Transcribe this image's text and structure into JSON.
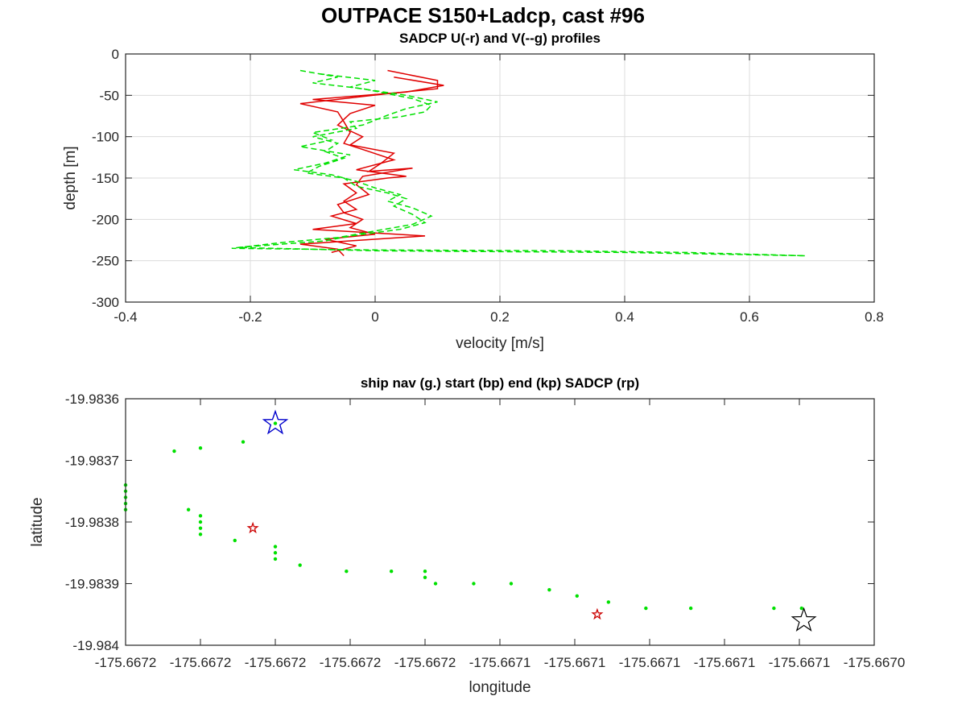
{
  "figure": {
    "title": "OUTPACE S150+Ladcp, cast #96"
  },
  "chart_data": [
    {
      "type": "line",
      "title": "SADCP U(-r) and V(--g) profiles",
      "xlabel": "velocity [m/s]",
      "ylabel": "depth [m]",
      "xlim": [
        -0.4,
        0.8
      ],
      "ylim": [
        -300,
        0
      ],
      "xticks": [
        -0.4,
        -0.2,
        0,
        0.2,
        0.4,
        0.6,
        0.8
      ],
      "xtick_labels": [
        "-0.4",
        "-0.2",
        "0",
        "0.2",
        "0.4",
        "0.6",
        "0.8"
      ],
      "yticks": [
        0,
        -50,
        -100,
        -150,
        -200,
        -250,
        -300
      ],
      "ytick_labels": [
        "0",
        "-50",
        "-100",
        "-150",
        "-200",
        "-250",
        "-300"
      ],
      "grid": true,
      "series": [
        {
          "style": "solid",
          "color": "#e00000",
          "points": [
            [
              0.02,
              -20
            ],
            [
              0.1,
              -32
            ],
            [
              0.1,
              -42
            ],
            [
              0.02,
              -48
            ],
            [
              -0.12,
              -60
            ],
            [
              -0.06,
              -70
            ],
            [
              -0.05,
              -82
            ],
            [
              -0.04,
              -95
            ],
            [
              -0.05,
              -108
            ],
            [
              -0.01,
              -118
            ],
            [
              0.03,
              -128
            ],
            [
              -0.03,
              -140
            ],
            [
              0.05,
              -148
            ],
            [
              0.02,
              -150
            ],
            [
              -0.05,
              -157
            ],
            [
              -0.03,
              -168
            ],
            [
              -0.05,
              -178
            ],
            [
              -0.03,
              -188
            ],
            [
              -0.07,
              -196
            ],
            [
              -0.03,
              -205
            ],
            [
              -0.1,
              -212
            ],
            [
              0.08,
              -220
            ],
            [
              -0.04,
              -226
            ],
            [
              -0.12,
              -230
            ],
            [
              -0.06,
              -236
            ],
            [
              -0.05,
              -244
            ]
          ]
        },
        {
          "style": "solid",
          "color": "#e00000",
          "points": [
            [
              0.03,
              -28
            ],
            [
              0.11,
              -38
            ],
            [
              0.05,
              -46
            ],
            [
              -0.1,
              -55
            ],
            [
              0.0,
              -62
            ],
            [
              -0.04,
              -72
            ],
            [
              -0.06,
              -86
            ],
            [
              -0.02,
              -100
            ],
            [
              -0.04,
              -110
            ],
            [
              0.03,
              -120
            ],
            [
              0.01,
              -132
            ],
            [
              -0.01,
              -142
            ],
            [
              0.06,
              -138
            ],
            [
              -0.02,
              -148
            ],
            [
              -0.03,
              -158
            ],
            [
              -0.01,
              -170
            ],
            [
              -0.06,
              -182
            ],
            [
              -0.05,
              -192
            ],
            [
              -0.02,
              -200
            ],
            [
              -0.04,
              -210
            ],
            [
              0.0,
              -218
            ],
            [
              -0.08,
              -224
            ],
            [
              -0.03,
              -232
            ],
            [
              -0.07,
              -240
            ]
          ]
        },
        {
          "style": "dashed",
          "color": "#00e000",
          "points": [
            [
              -0.12,
              -20
            ],
            [
              -0.06,
              -28
            ],
            [
              -0.1,
              -35
            ],
            [
              -0.02,
              -42
            ],
            [
              0.02,
              -48
            ],
            [
              0.06,
              -54
            ],
            [
              0.09,
              -62
            ],
            [
              0.08,
              -70
            ],
            [
              0.04,
              -76
            ],
            [
              -0.04,
              -82
            ],
            [
              -0.03,
              -90
            ],
            [
              -0.1,
              -100
            ],
            [
              -0.06,
              -108
            ],
            [
              -0.08,
              -118
            ],
            [
              -0.05,
              -126
            ],
            [
              -0.09,
              -136
            ],
            [
              -0.11,
              -144
            ],
            [
              -0.05,
              -150
            ],
            [
              -0.03,
              -160
            ],
            [
              0.02,
              -168
            ],
            [
              0.05,
              -175
            ],
            [
              0.03,
              -184
            ],
            [
              0.06,
              -194
            ],
            [
              0.08,
              -204
            ],
            [
              0.04,
              -212
            ],
            [
              -0.04,
              -220
            ],
            [
              -0.08,
              -226
            ],
            [
              -0.22,
              -234
            ],
            [
              0.0,
              -238
            ],
            [
              0.2,
              -239
            ],
            [
              0.4,
              -240
            ],
            [
              0.55,
              -242
            ],
            [
              0.69,
              -244
            ]
          ]
        },
        {
          "style": "dashed",
          "color": "#00e000",
          "points": [
            [
              -0.09,
              -24
            ],
            [
              0.0,
              -32
            ],
            [
              -0.04,
              -40
            ],
            [
              0.05,
              -50
            ],
            [
              0.1,
              -58
            ],
            [
              0.05,
              -66
            ],
            [
              0.02,
              -74
            ],
            [
              -0.02,
              -86
            ],
            [
              -0.1,
              -95
            ],
            [
              -0.07,
              -104
            ],
            [
              -0.12,
              -112
            ],
            [
              -0.04,
              -122
            ],
            [
              -0.08,
              -132
            ],
            [
              -0.13,
              -140
            ],
            [
              -0.07,
              -146
            ],
            [
              -0.03,
              -154
            ],
            [
              0.0,
              -162
            ],
            [
              0.04,
              -170
            ],
            [
              0.02,
              -178
            ],
            [
              0.06,
              -186
            ],
            [
              0.09,
              -196
            ],
            [
              0.06,
              -206
            ],
            [
              0.0,
              -214
            ],
            [
              -0.06,
              -222
            ],
            [
              -0.15,
              -228
            ],
            [
              -0.23,
              -235
            ],
            [
              0.0,
              -237
            ],
            [
              0.3,
              -238
            ],
            [
              0.5,
              -240
            ],
            [
              0.69,
              -244
            ]
          ]
        }
      ]
    },
    {
      "type": "scatter",
      "title": "ship nav (g.) start (bp) end (kp) SADCP (rp)",
      "xlabel": "longitude",
      "ylabel": "latitude",
      "xlim": [
        0,
        1
      ],
      "ylim": [
        -19.984,
        -19.9836
      ],
      "xtick_labels": [
        "-175.6672",
        "-175.6672",
        "-175.6672",
        "-175.6672",
        "-175.6672",
        "-175.6671",
        "-175.6671",
        "-175.6671",
        "-175.6671",
        "-175.6671",
        "-175.6670"
      ],
      "ytick_labels": [
        "-19.9836",
        "-19.9837",
        "-19.9838",
        "-19.9839",
        "-19.984"
      ],
      "yticks": [
        -19.9836,
        -19.9837,
        -19.9838,
        -19.9839,
        -19.984
      ],
      "grid": false,
      "note_x_units": "fraction of the longitude axis span (tick labels rounded in the original)",
      "ship_nav": {
        "color": "#00e000",
        "points": [
          [
            0.0,
            -19.98374
          ],
          [
            0.0,
            -19.98375
          ],
          [
            0.0,
            -19.98376
          ],
          [
            0.0,
            -19.98377
          ],
          [
            0.0,
            -19.98378
          ],
          [
            0.065,
            -19.983685
          ],
          [
            0.1,
            -19.98368
          ],
          [
            0.157,
            -19.98367
          ],
          [
            0.2,
            -19.98364
          ],
          [
            0.084,
            -19.98378
          ],
          [
            0.1,
            -19.98379
          ],
          [
            0.1,
            -19.9838
          ],
          [
            0.1,
            -19.98381
          ],
          [
            0.1,
            -19.98382
          ],
          [
            0.146,
            -19.98383
          ],
          [
            0.2,
            -19.98384
          ],
          [
            0.2,
            -19.98385
          ],
          [
            0.2,
            -19.98386
          ],
          [
            0.233,
            -19.98387
          ],
          [
            0.295,
            -19.98388
          ],
          [
            0.355,
            -19.98388
          ],
          [
            0.4,
            -19.98388
          ],
          [
            0.4,
            -19.98389
          ],
          [
            0.414,
            -19.9839
          ],
          [
            0.465,
            -19.9839
          ],
          [
            0.515,
            -19.9839
          ],
          [
            0.566,
            -19.98391
          ],
          [
            0.603,
            -19.98392
          ],
          [
            0.645,
            -19.98393
          ],
          [
            0.695,
            -19.98394
          ],
          [
            0.755,
            -19.98394
          ],
          [
            0.866,
            -19.98394
          ],
          [
            0.903,
            -19.98394
          ]
        ]
      },
      "start": {
        "color": "#0000cc",
        "x": 0.2,
        "y": -19.98364
      },
      "end": {
        "color": "#000000",
        "x": 0.906,
        "y": -19.98396
      },
      "sadcp": {
        "color": "#cc0000",
        "points": [
          [
            0.17,
            -19.98381
          ],
          [
            0.63,
            -19.98395
          ]
        ]
      }
    }
  ]
}
